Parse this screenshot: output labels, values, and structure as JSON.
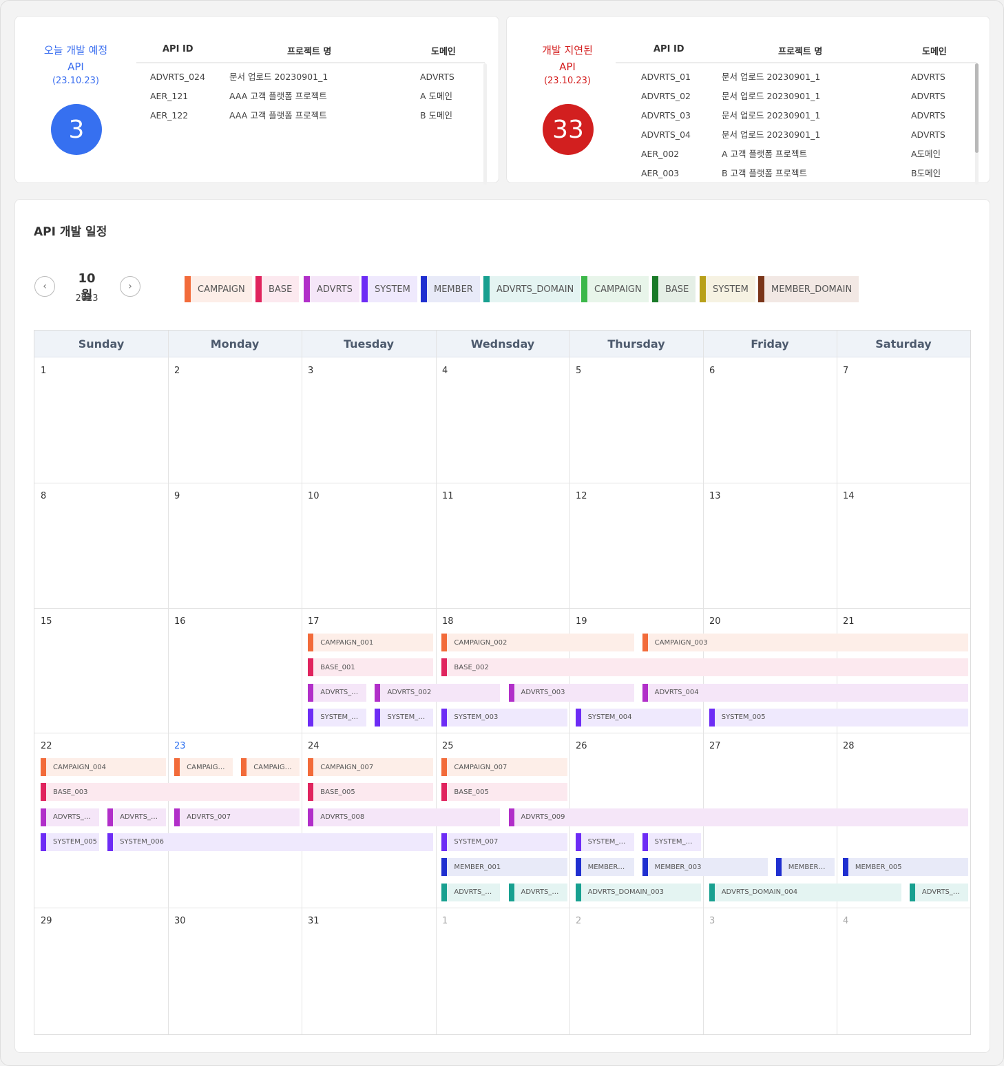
{
  "summary": {
    "today": {
      "title_line1": "오늘 개발 예정",
      "title_line2": "API",
      "date": "(23.10.23)",
      "count": "3",
      "headers": [
        "API ID",
        "프로젝트 명",
        "도메인"
      ],
      "rows": [
        [
          "ADVRTS_024",
          "문서 업로드 20230901_1",
          "ADVRTS"
        ],
        [
          "AER_121",
          "AAA 고객 플랫폼 프로젝트",
          "A 도메인"
        ],
        [
          "AER_122",
          "AAA 고객 플랫폼 프로젝트",
          "B 도메인"
        ]
      ]
    },
    "delayed": {
      "title_line1": "개발 지연된",
      "title_line2": "API",
      "date": "(23.10.23)",
      "count": "33",
      "headers": [
        "API ID",
        "프로젝트 명",
        "도메인"
      ],
      "rows": [
        [
          "ADVRTS_01",
          "문서 업로드 20230901_1",
          "ADVRTS"
        ],
        [
          "ADVRTS_02",
          "문서 업로드 20230901_1",
          "ADVRTS"
        ],
        [
          "ADVRTS_03",
          "문서 업로드 20230901_1",
          "ADVRTS"
        ],
        [
          "ADVRTS_04",
          "문서 업로드 20230901_1",
          "ADVRTS"
        ],
        [
          "AER_002",
          "A 고객 플랫폼 프로젝트",
          "A도메인"
        ],
        [
          "AER_003",
          "B 고객 플랫폼 프로젝트",
          "B도메인"
        ]
      ]
    }
  },
  "schedule": {
    "title": "API 개발 일정",
    "month": "10월",
    "year": "2023",
    "prev_icon": "chevron-left-icon",
    "next_icon": "chevron-right-icon",
    "prev_glyph": "‹",
    "next_glyph": "›",
    "legend": [
      {
        "label": "CAMPAIGN",
        "color": "#f26b3a",
        "bg": "#fdeee8"
      },
      {
        "label": "BASE",
        "color": "#e0245e",
        "bg": "#fce9ef"
      },
      {
        "label": "ADVRTS",
        "color": "#b12fc9",
        "bg": "#f5e6f8"
      },
      {
        "label": "SYSTEM",
        "color": "#6d2cf5",
        "bg": "#efe9fd"
      },
      {
        "label": "MEMBER",
        "color": "#1f2fd0",
        "bg": "#e8eaf8"
      },
      {
        "label": "ADVRTS_DOMAIN",
        "color": "#18a090",
        "bg": "#e4f4f2"
      },
      {
        "label": "CAMPAIGN",
        "color": "#3cb84a",
        "bg": "#e8f5ea"
      },
      {
        "label": "BASE",
        "color": "#197a28",
        "bg": "#e5efe6"
      },
      {
        "label": "SYSTEM",
        "color": "#b8a01a",
        "bg": "#f6f2e2"
      },
      {
        "label": "MEMBER_DOMAIN",
        "color": "#7a3519",
        "bg": "#f2e8e4"
      }
    ],
    "weekdays": [
      "Sunday",
      "Monday",
      "Tuesday",
      "Wednsday",
      "Thursday",
      "Friday",
      "Saturday"
    ],
    "weeks": [
      [
        "1",
        "2",
        "3",
        "4",
        "5",
        "6",
        "7"
      ],
      [
        "8",
        "9",
        "10",
        "11",
        "12",
        "13",
        "14"
      ],
      [
        "15",
        "16",
        "17",
        "18",
        "19",
        "20",
        "21"
      ],
      [
        "22",
        "23",
        "24",
        "25",
        "26",
        "27",
        "28"
      ],
      [
        "29",
        "30",
        "31",
        "1",
        "2",
        "3",
        "4"
      ]
    ],
    "today_day": "23",
    "events": [
      {
        "week": 2,
        "lane": 0,
        "start": 2,
        "span": 1,
        "label": "CAMPAIGN_001",
        "cat": 0
      },
      {
        "week": 2,
        "lane": 0,
        "start": 3,
        "span": 1.5,
        "label": "CAMPAIGN_002",
        "cat": 0
      },
      {
        "week": 2,
        "lane": 0,
        "start": 4.5,
        "span": 2.5,
        "label": "CAMPAIGN_003",
        "cat": 0
      },
      {
        "week": 2,
        "lane": 1,
        "start": 2,
        "span": 1,
        "label": "BASE_001",
        "cat": 1
      },
      {
        "week": 2,
        "lane": 1,
        "start": 3,
        "span": 4,
        "label": "BASE_002",
        "cat": 1
      },
      {
        "week": 2,
        "lane": 2,
        "start": 2,
        "span": 0.5,
        "label": "ADVRTS_…",
        "cat": 2
      },
      {
        "week": 2,
        "lane": 2,
        "start": 2.5,
        "span": 1,
        "label": "ADVRTS_002",
        "cat": 2
      },
      {
        "week": 2,
        "lane": 2,
        "start": 3.5,
        "span": 1,
        "label": "ADVRTS_003",
        "cat": 2
      },
      {
        "week": 2,
        "lane": 2,
        "start": 4.5,
        "span": 2.5,
        "label": "ADVRTS_004",
        "cat": 2
      },
      {
        "week": 2,
        "lane": 3,
        "start": 2,
        "span": 0.5,
        "label": "SYSTEM_…",
        "cat": 3
      },
      {
        "week": 2,
        "lane": 3,
        "start": 2.5,
        "span": 0.5,
        "label": "SYSTEM_…",
        "cat": 3
      },
      {
        "week": 2,
        "lane": 3,
        "start": 3,
        "span": 1,
        "label": "SYSTEM_003",
        "cat": 3
      },
      {
        "week": 2,
        "lane": 3,
        "start": 4,
        "span": 1,
        "label": "SYSTEM_004",
        "cat": 3
      },
      {
        "week": 2,
        "lane": 3,
        "start": 5,
        "span": 2,
        "label": "SYSTEM_005",
        "cat": 3
      },
      {
        "week": 3,
        "lane": 0,
        "start": 0,
        "span": 1,
        "label": "CAMPAIGN_004",
        "cat": 0
      },
      {
        "week": 3,
        "lane": 0,
        "start": 1,
        "span": 0.5,
        "label": "CAMPAIG…",
        "cat": 0
      },
      {
        "week": 3,
        "lane": 0,
        "start": 1.5,
        "span": 0.5,
        "label": "CAMPAIG…",
        "cat": 0
      },
      {
        "week": 3,
        "lane": 0,
        "start": 2,
        "span": 1,
        "label": "CAMPAIGN_007",
        "cat": 0
      },
      {
        "week": 3,
        "lane": 0,
        "start": 3,
        "span": 1,
        "label": "CAMPAIGN_007",
        "cat": 0
      },
      {
        "week": 3,
        "lane": 1,
        "start": 0,
        "span": 2,
        "label": "BASE_003",
        "cat": 1
      },
      {
        "week": 3,
        "lane": 1,
        "start": 2,
        "span": 1,
        "label": "BASE_005",
        "cat": 1
      },
      {
        "week": 3,
        "lane": 1,
        "start": 3,
        "span": 1,
        "label": "BASE_005",
        "cat": 1
      },
      {
        "week": 3,
        "lane": 2,
        "start": 0,
        "span": 0.5,
        "label": "ADVRTS_…",
        "cat": 2
      },
      {
        "week": 3,
        "lane": 2,
        "start": 0.5,
        "span": 0.5,
        "label": "ADVRTS_…",
        "cat": 2
      },
      {
        "week": 3,
        "lane": 2,
        "start": 1,
        "span": 1,
        "label": "ADVRTS_007",
        "cat": 2
      },
      {
        "week": 3,
        "lane": 2,
        "start": 2,
        "span": 1.5,
        "label": "ADVRTS_008",
        "cat": 2
      },
      {
        "week": 3,
        "lane": 2,
        "start": 3.5,
        "span": 3.5,
        "label": "ADVRTS_009",
        "cat": 2
      },
      {
        "week": 3,
        "lane": 3,
        "start": 0,
        "span": 0.5,
        "label": "SYSTEM_005",
        "cat": 3
      },
      {
        "week": 3,
        "lane": 3,
        "start": 0.5,
        "span": 2.5,
        "label": "SYSTEM_006",
        "cat": 3
      },
      {
        "week": 3,
        "lane": 3,
        "start": 3,
        "span": 1,
        "label": "SYSTEM_007",
        "cat": 3
      },
      {
        "week": 3,
        "lane": 3,
        "start": 4,
        "span": 0.5,
        "label": "SYSTEM_…",
        "cat": 3
      },
      {
        "week": 3,
        "lane": 3,
        "start": 4.5,
        "span": 0.5,
        "label": "SYSTEM_…",
        "cat": 3
      },
      {
        "week": 3,
        "lane": 4,
        "start": 3,
        "span": 1,
        "label": "MEMBER_001",
        "cat": 4
      },
      {
        "week": 3,
        "lane": 4,
        "start": 4,
        "span": 0.5,
        "label": "MEMBER…",
        "cat": 4
      },
      {
        "week": 3,
        "lane": 4,
        "start": 4.5,
        "span": 1,
        "label": "MEMBER_003",
        "cat": 4
      },
      {
        "week": 3,
        "lane": 4,
        "start": 5.5,
        "span": 0.5,
        "label": "MEMBER…",
        "cat": 4
      },
      {
        "week": 3,
        "lane": 4,
        "start": 6,
        "span": 1,
        "label": "MEMBER_005",
        "cat": 4
      },
      {
        "week": 3,
        "lane": 5,
        "start": 3,
        "span": 0.5,
        "label": "ADVRTS_…",
        "cat": 5
      },
      {
        "week": 3,
        "lane": 5,
        "start": 3.5,
        "span": 0.5,
        "label": "ADVRTS_…",
        "cat": 5
      },
      {
        "week": 3,
        "lane": 5,
        "start": 4,
        "span": 1,
        "label": "ADVRTS_DOMAIN_003",
        "cat": 5
      },
      {
        "week": 3,
        "lane": 5,
        "start": 5,
        "span": 1.5,
        "label": "ADVRTS_DOMAIN_004",
        "cat": 5
      },
      {
        "week": 3,
        "lane": 5,
        "start": 6.5,
        "span": 0.5,
        "label": "ADVRTS_…",
        "cat": 5
      }
    ]
  }
}
